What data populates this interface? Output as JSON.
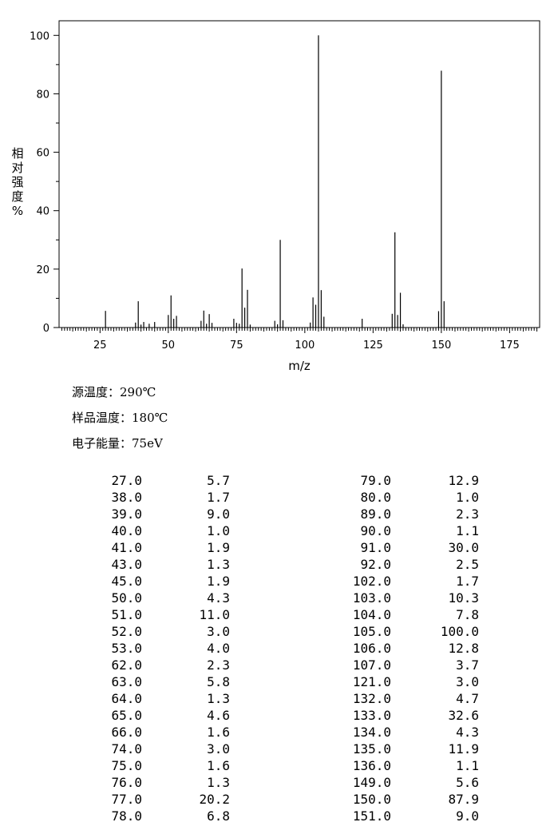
{
  "chart_data": {
    "type": "bar",
    "xlabel": "m/z",
    "ylabel": "相对强度%",
    "xlim": [
      10,
      186
    ],
    "ylim": [
      0,
      105
    ],
    "x_ticks": [
      "25",
      "50",
      "75",
      "100",
      "125",
      "150",
      "175"
    ],
    "y_ticks": [
      "0",
      "20",
      "40",
      "60",
      "80",
      "100"
    ],
    "x": [
      27,
      38,
      39,
      40,
      41,
      43,
      45,
      50,
      51,
      52,
      53,
      62,
      63,
      64,
      65,
      66,
      74,
      75,
      76,
      77,
      78,
      79,
      80,
      89,
      90,
      91,
      92,
      102,
      103,
      104,
      105,
      106,
      107,
      121,
      132,
      133,
      134,
      135,
      136,
      149,
      150,
      151
    ],
    "values": [
      5.7,
      1.7,
      9.0,
      1.0,
      1.9,
      1.3,
      1.9,
      4.3,
      11.0,
      3.0,
      4.0,
      2.3,
      5.8,
      1.3,
      4.6,
      1.6,
      3.0,
      1.6,
      1.3,
      20.2,
      6.8,
      12.9,
      1.0,
      2.3,
      1.1,
      30.0,
      2.5,
      1.7,
      10.3,
      7.8,
      100.0,
      12.8,
      3.7,
      3.0,
      4.7,
      32.6,
      4.3,
      11.9,
      1.1,
      5.6,
      87.9,
      9.0
    ]
  },
  "conditions": [
    {
      "label": "源温度：",
      "value": "290℃"
    },
    {
      "label": "样品温度：",
      "value": "180℃"
    },
    {
      "label": "电子能量：",
      "value": "75eV"
    }
  ],
  "peak_table": {
    "left": [
      [
        "27.0",
        "5.7"
      ],
      [
        "38.0",
        "1.7"
      ],
      [
        "39.0",
        "9.0"
      ],
      [
        "40.0",
        "1.0"
      ],
      [
        "41.0",
        "1.9"
      ],
      [
        "43.0",
        "1.3"
      ],
      [
        "45.0",
        "1.9"
      ],
      [
        "50.0",
        "4.3"
      ],
      [
        "51.0",
        "11.0"
      ],
      [
        "52.0",
        "3.0"
      ],
      [
        "53.0",
        "4.0"
      ],
      [
        "62.0",
        "2.3"
      ],
      [
        "63.0",
        "5.8"
      ],
      [
        "64.0",
        "1.3"
      ],
      [
        "65.0",
        "4.6"
      ],
      [
        "66.0",
        "1.6"
      ],
      [
        "74.0",
        "3.0"
      ],
      [
        "75.0",
        "1.6"
      ],
      [
        "76.0",
        "1.3"
      ],
      [
        "77.0",
        "20.2"
      ],
      [
        "78.0",
        "6.8"
      ]
    ],
    "right": [
      [
        "79.0",
        "12.9"
      ],
      [
        "80.0",
        "1.0"
      ],
      [
        "89.0",
        "2.3"
      ],
      [
        "90.0",
        "1.1"
      ],
      [
        "91.0",
        "30.0"
      ],
      [
        "92.0",
        "2.5"
      ],
      [
        "102.0",
        "1.7"
      ],
      [
        "103.0",
        "10.3"
      ],
      [
        "104.0",
        "7.8"
      ],
      [
        "105.0",
        "100.0"
      ],
      [
        "106.0",
        "12.8"
      ],
      [
        "107.0",
        "3.7"
      ],
      [
        "121.0",
        "3.0"
      ],
      [
        "132.0",
        "4.7"
      ],
      [
        "133.0",
        "32.6"
      ],
      [
        "134.0",
        "4.3"
      ],
      [
        "135.0",
        "11.9"
      ],
      [
        "136.0",
        "1.1"
      ],
      [
        "149.0",
        "5.6"
      ],
      [
        "150.0",
        "87.9"
      ],
      [
        "151.0",
        "9.0"
      ]
    ]
  }
}
